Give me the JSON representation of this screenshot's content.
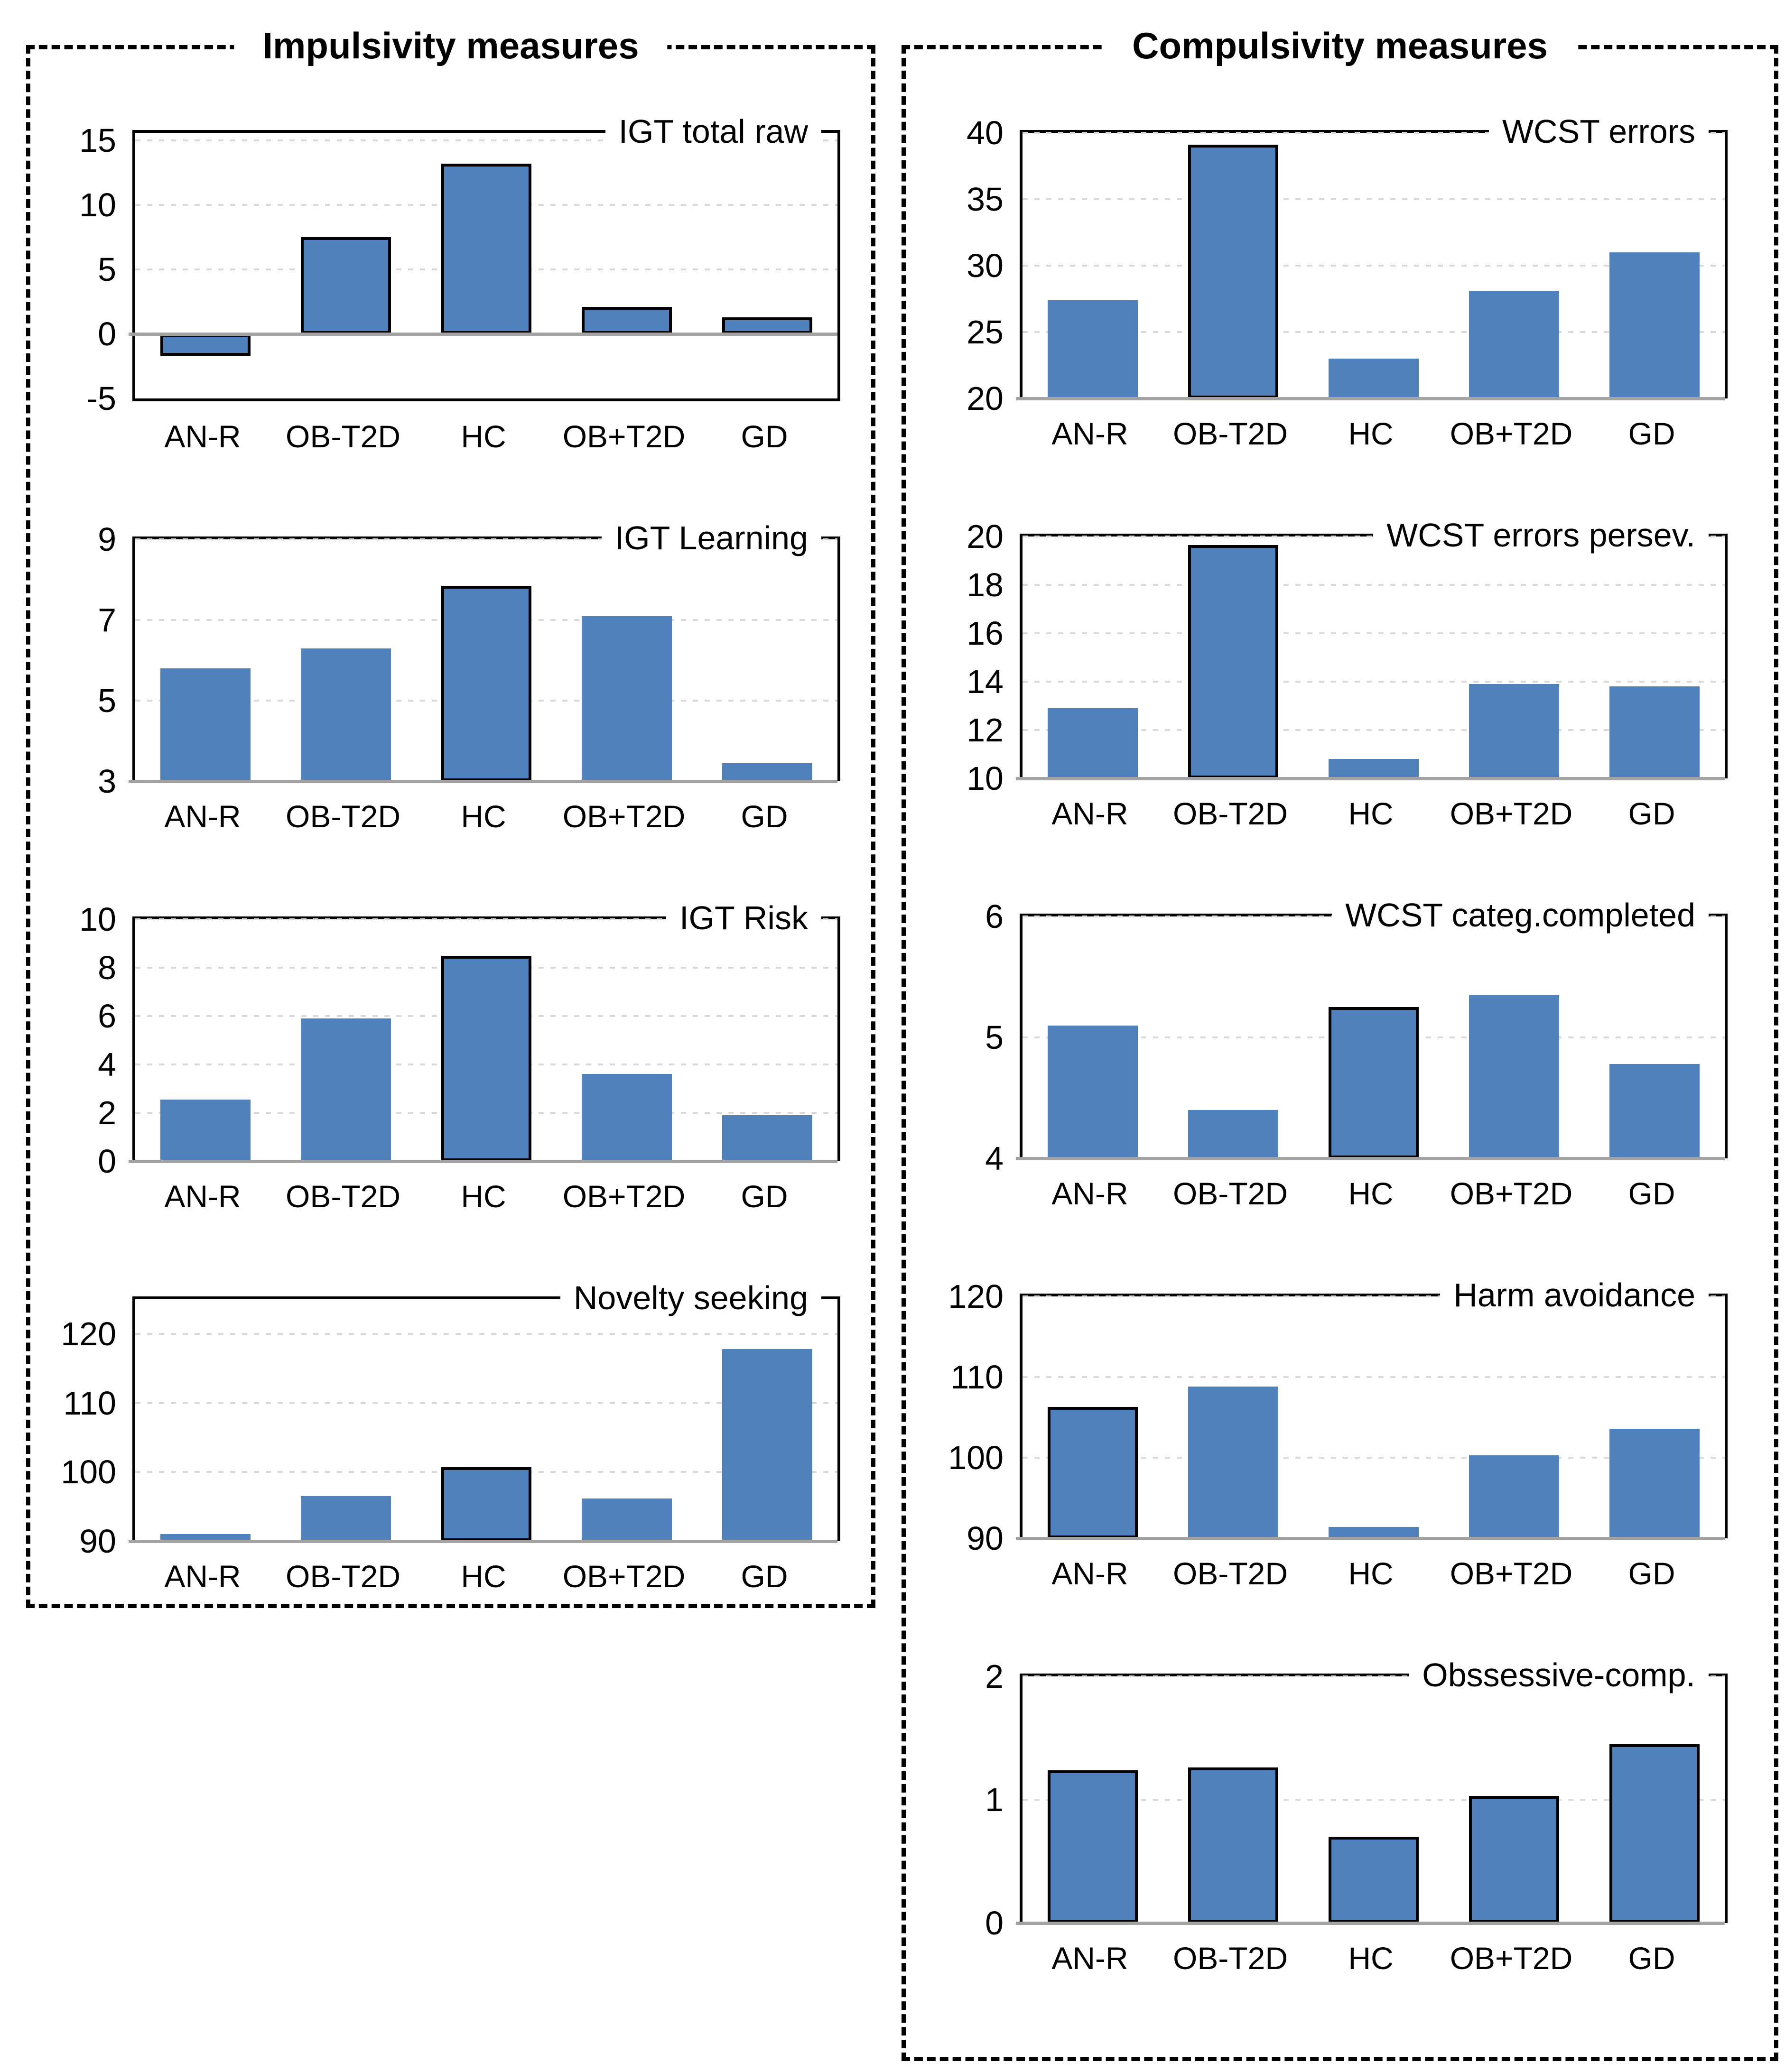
{
  "figure": {
    "panel_titles": [
      "Impulsivity measures",
      "Compulsivity measures"
    ]
  },
  "categories": [
    "AN-R",
    "OB-T2D",
    "HC",
    "OB+T2D",
    "GD"
  ],
  "colors": {
    "bar_fill": "#4f81bd",
    "bar_outline": "#000000",
    "axis_line": "#a3a3a3",
    "gridline": "#d9d9d9",
    "spine": "#000000",
    "panel_border": "#000000"
  },
  "chart_data": [
    {
      "type": "bar",
      "panel": 0,
      "title": "IGT total raw",
      "categories": [
        "AN-R",
        "OB-T2D",
        "HC",
        "OB+T2D",
        "GD"
      ],
      "values": [
        -1.7,
        7.5,
        13.2,
        2.1,
        1.3
      ],
      "outlined": [
        true,
        true,
        true,
        true,
        true
      ],
      "ylim": [
        -5,
        15.6
      ],
      "yticks": [
        15,
        10,
        5,
        0,
        -5
      ],
      "grid": true,
      "legend": "none"
    },
    {
      "type": "bar",
      "panel": 0,
      "title": "IGT Learning",
      "categories": [
        "AN-R",
        "OB-T2D",
        "HC",
        "OB+T2D",
        "GD"
      ],
      "values": [
        5.8,
        6.3,
        7.85,
        7.1,
        3.45
      ],
      "outlined": [
        false,
        false,
        true,
        false,
        false
      ],
      "ylim": [
        3,
        9
      ],
      "yticks": [
        9,
        7,
        5,
        3
      ],
      "grid": true,
      "legend": "none"
    },
    {
      "type": "bar",
      "panel": 0,
      "title": "IGT Risk",
      "categories": [
        "AN-R",
        "OB-T2D",
        "HC",
        "OB+T2D",
        "GD"
      ],
      "values": [
        2.55,
        5.9,
        8.5,
        3.6,
        1.9
      ],
      "outlined": [
        false,
        false,
        true,
        false,
        false
      ],
      "ylim": [
        0,
        10
      ],
      "yticks": [
        10,
        8,
        6,
        4,
        2,
        0
      ],
      "grid": true,
      "legend": "none"
    },
    {
      "type": "bar",
      "panel": 0,
      "title": "Novelty seeking",
      "categories": [
        "AN-R",
        "OB-T2D",
        "HC",
        "OB+T2D",
        "GD"
      ],
      "values": [
        91,
        96.5,
        100.7,
        96.2,
        117.8
      ],
      "outlined": [
        false,
        false,
        true,
        false,
        false
      ],
      "ylim": [
        90,
        125
      ],
      "yticks": [
        120,
        110,
        100,
        90
      ],
      "grid": true,
      "legend": "none"
    },
    {
      "type": "bar",
      "panel": 1,
      "title": "WCST errors",
      "categories": [
        "AN-R",
        "OB-T2D",
        "HC",
        "OB+T2D",
        "GD"
      ],
      "values": [
        27.4,
        39.1,
        23.0,
        28.1,
        31.0
      ],
      "outlined": [
        false,
        true,
        false,
        false,
        false
      ],
      "ylim": [
        20,
        40
      ],
      "yticks": [
        40,
        35,
        30,
        25,
        20
      ],
      "grid": true,
      "legend": "none"
    },
    {
      "type": "bar",
      "panel": 1,
      "title": "WCST errors persev.",
      "categories": [
        "AN-R",
        "OB-T2D",
        "HC",
        "OB+T2D",
        "GD"
      ],
      "values": [
        12.9,
        19.65,
        10.8,
        13.9,
        13.8
      ],
      "outlined": [
        false,
        true,
        false,
        false,
        false
      ],
      "ylim": [
        10,
        20
      ],
      "yticks": [
        20,
        18,
        16,
        14,
        12,
        10
      ],
      "grid": true,
      "legend": "none"
    },
    {
      "type": "bar",
      "panel": 1,
      "title": "WCST categ.completed",
      "categories": [
        "AN-R",
        "OB-T2D",
        "HC",
        "OB+T2D",
        "GD"
      ],
      "values": [
        5.1,
        4.4,
        5.25,
        5.35,
        4.78
      ],
      "outlined": [
        false,
        false,
        true,
        false,
        false
      ],
      "ylim": [
        4,
        6
      ],
      "yticks": [
        6,
        5,
        4
      ],
      "grid": true,
      "legend": "none"
    },
    {
      "type": "bar",
      "panel": 1,
      "title": "Harm avoidance",
      "categories": [
        "AN-R",
        "OB-T2D",
        "HC",
        "OB+T2D",
        "GD"
      ],
      "values": [
        106.3,
        108.8,
        91.4,
        100.3,
        103.6
      ],
      "outlined": [
        true,
        false,
        false,
        false,
        false
      ],
      "ylim": [
        90,
        120
      ],
      "yticks": [
        120,
        110,
        100,
        90
      ],
      "grid": true,
      "legend": "none"
    },
    {
      "type": "bar",
      "panel": 1,
      "title": "Obssessive-comp.",
      "categories": [
        "AN-R",
        "OB-T2D",
        "HC",
        "OB+T2D",
        "GD"
      ],
      "values": [
        1.24,
        1.26,
        0.7,
        1.03,
        1.45
      ],
      "outlined": [
        true,
        true,
        true,
        true,
        true
      ],
      "ylim": [
        0,
        2
      ],
      "yticks": [
        2,
        1,
        0
      ],
      "grid": true,
      "legend": "none"
    }
  ]
}
